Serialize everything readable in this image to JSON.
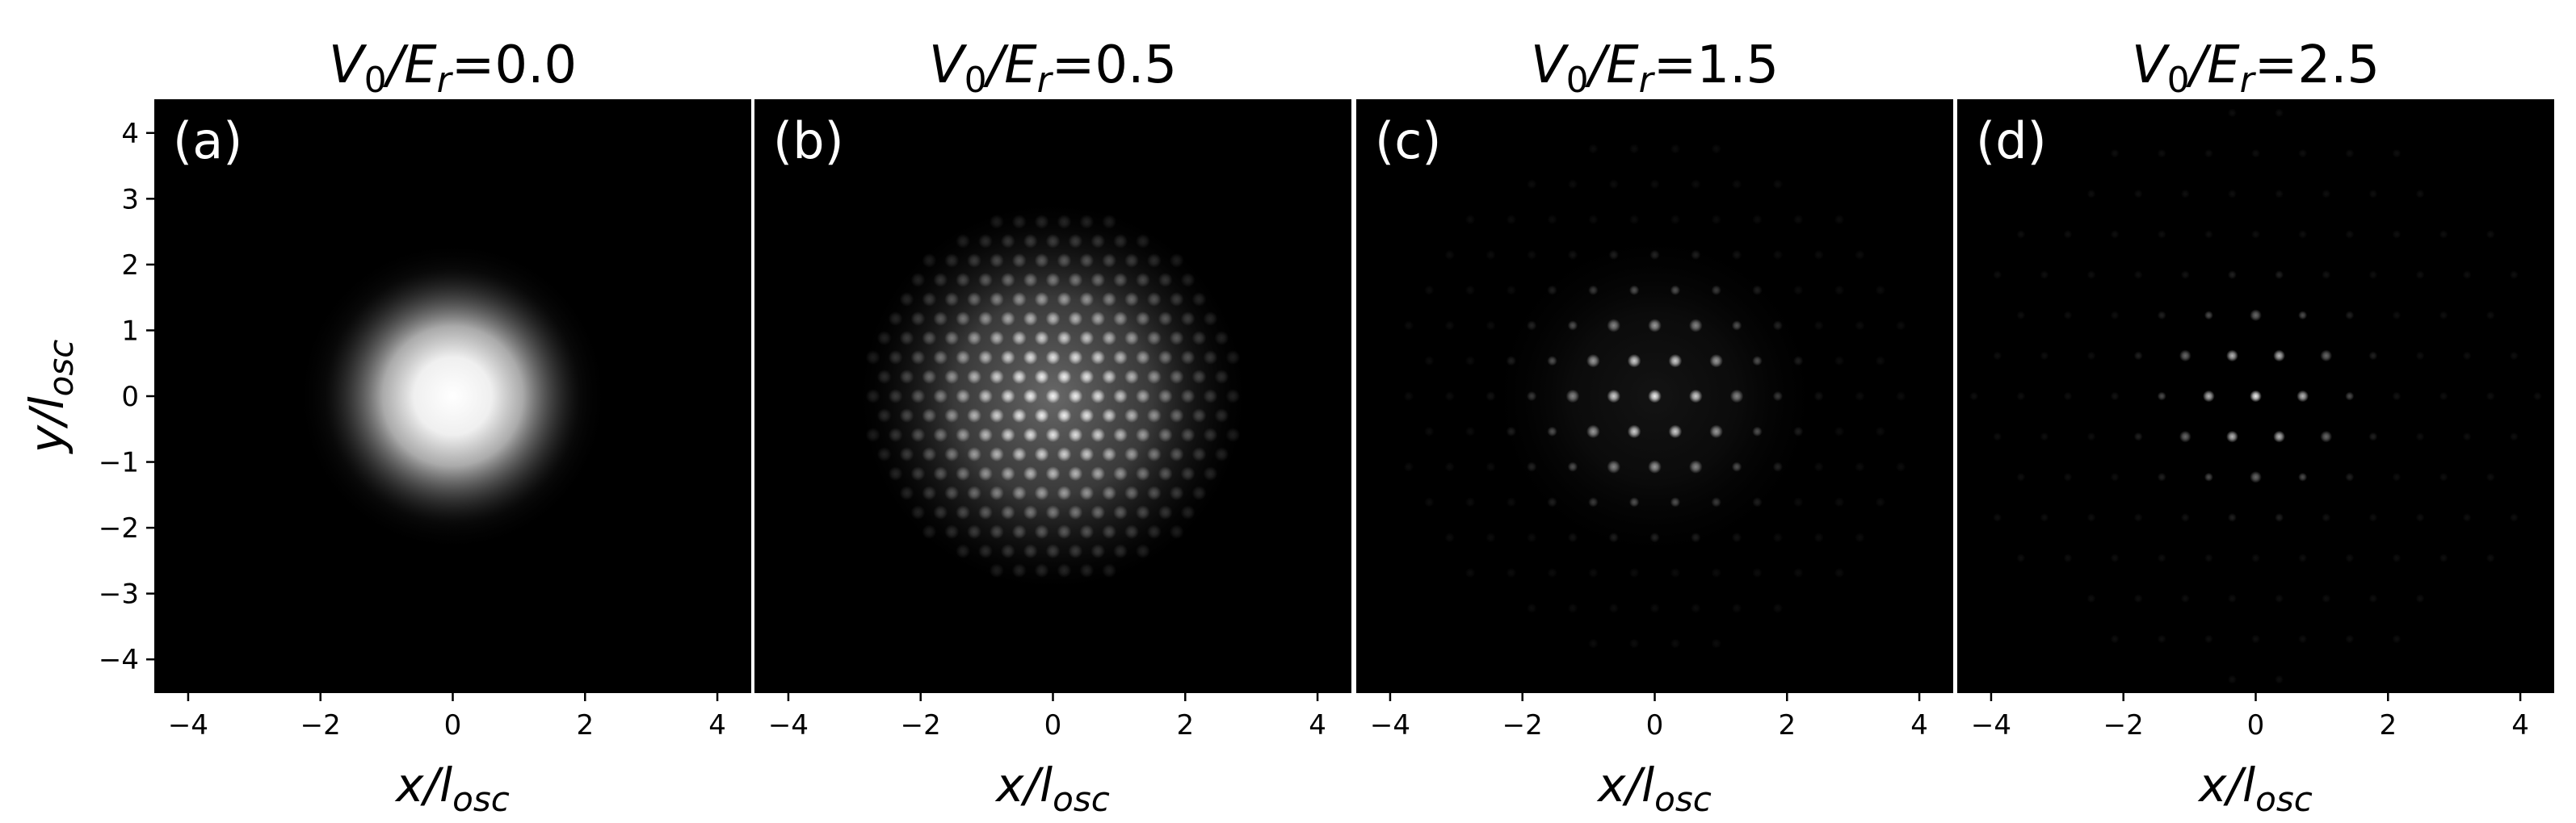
{
  "chart_data": [
    {
      "type": "heatmap",
      "panel_label": "(a)",
      "title_parts": {
        "v": "V",
        "v_sub": "0",
        "sep": "/E",
        "e_sub": "r",
        "eq": "=0.0"
      },
      "potential_V0_over_Er": 0.0,
      "colormap": "gray",
      "xlim": [
        -4.5,
        4.5
      ],
      "ylim": [
        -4.5,
        4.5
      ],
      "xticks": [
        -4,
        -2,
        0,
        2,
        4
      ],
      "yticks": [
        4,
        3,
        2,
        1,
        0,
        -1,
        -2,
        -3,
        -4
      ],
      "xlabel_parts": {
        "main": "x/l",
        "sub": "osc"
      },
      "ylabel_parts": {
        "main": "y/l",
        "sub": "osc"
      },
      "show_ylabel": true,
      "cloud_sigma": 1.3
    },
    {
      "type": "heatmap",
      "panel_label": "(b)",
      "title_parts": {
        "v": "V",
        "v_sub": "0",
        "sep": "/E",
        "e_sub": "r",
        "eq": "=0.5"
      },
      "potential_V0_over_Er": 0.5,
      "colormap": "gray",
      "xlim": [
        -4.5,
        4.5
      ],
      "ylim": [
        -4.5,
        4.5
      ],
      "xticks": [
        -4,
        -2,
        0,
        2,
        4
      ],
      "xlabel_parts": {
        "main": "x/l",
        "sub": "osc"
      },
      "show_ylabel": false
    },
    {
      "type": "heatmap",
      "panel_label": "(c)",
      "title_parts": {
        "v": "V",
        "v_sub": "0",
        "sep": "/E",
        "e_sub": "r",
        "eq": "=1.5"
      },
      "potential_V0_over_Er": 1.5,
      "colormap": "gray",
      "xlim": [
        -4.5,
        4.5
      ],
      "ylim": [
        -4.5,
        4.5
      ],
      "xticks": [
        -4,
        -2,
        0,
        2,
        4
      ],
      "xlabel_parts": {
        "main": "x/l",
        "sub": "osc"
      },
      "show_ylabel": false
    },
    {
      "type": "heatmap",
      "panel_label": "(d)",
      "title_parts": {
        "v": "V",
        "v_sub": "0",
        "sep": "/E",
        "e_sub": "r",
        "eq": "=2.5"
      },
      "potential_V0_over_Er": 2.5,
      "colormap": "gray",
      "xlim": [
        -4.5,
        4.5
      ],
      "ylim": [
        -4.5,
        4.5
      ],
      "xticks": [
        -4,
        -2,
        0,
        2,
        4
      ],
      "xlabel_parts": {
        "main": "x/l",
        "sub": "osc"
      },
      "show_ylabel": false
    }
  ]
}
